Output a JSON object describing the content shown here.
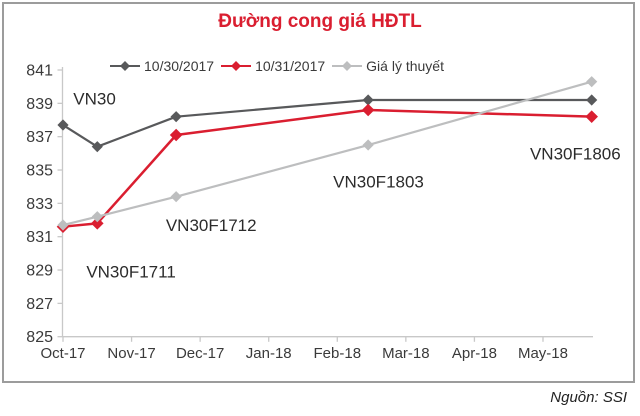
{
  "title": "Đường cong giá HĐTL",
  "source": "Nguồn: SSI",
  "colors": {
    "title_red": "#da1e30",
    "series_dark_gray": "#58595b",
    "series_red": "#da1e30",
    "series_light_gray": "#bdbebf",
    "axis_line": "#c8c8c8",
    "tick_text": "#3a3a3a",
    "annotation_text": "#2b2b2b",
    "frame_border": "#9c9c9c"
  },
  "chart_data": {
    "type": "line",
    "title": "Đường cong giá HĐTL",
    "xlabel": "",
    "ylabel": "",
    "grid": false,
    "legend_position": "top-center",
    "x_axis": {
      "tick_labels": [
        "Oct-17",
        "Nov-17",
        "Dec-17",
        "Jan-18",
        "Feb-18",
        "Mar-18",
        "Apr-18",
        "May-18"
      ],
      "tick_months": [
        0,
        1,
        2,
        3,
        4,
        5,
        6,
        7
      ],
      "range_months": [
        0,
        7.73
      ]
    },
    "y_axis": {
      "ticks": [
        825,
        827,
        829,
        831,
        833,
        835,
        837,
        839,
        841
      ],
      "lim": [
        825,
        841
      ]
    },
    "categories": [
      "VN30",
      "VN30F1711",
      "VN30F1712",
      "VN30F1803",
      "VN30F1806"
    ],
    "x_months": [
      0,
      0.5,
      1.65,
      4.45,
      7.71
    ],
    "series": [
      {
        "name": "10/30/2017",
        "color": "#58595b",
        "marker": "diamond",
        "marker_size": 5.6,
        "line_width": 2.2,
        "values": [
          837.7,
          836.4,
          838.2,
          839.2,
          839.2
        ]
      },
      {
        "name": "10/31/2017",
        "color": "#da1e30",
        "marker": "diamond",
        "marker_size": 6.3,
        "line_width": 2.5,
        "values": [
          831.6,
          831.8,
          837.1,
          838.6,
          838.2
        ]
      },
      {
        "name": "Giá lý thuyết",
        "color": "#bdbebf",
        "marker": "diamond",
        "marker_size": 5.6,
        "line_width": 2.2,
        "values": [
          831.7,
          832.2,
          833.4,
          836.5,
          840.3
        ]
      }
    ],
    "annotations": [
      {
        "text": "VN30",
        "x_month": 0.15,
        "y_value": 839.3
      },
      {
        "text": "VN30F1711",
        "x_month": 0.34,
        "y_value": 828.9
      },
      {
        "text": "VN30F1712",
        "x_month": 1.5,
        "y_value": 831.7
      },
      {
        "text": "VN30F1803",
        "x_month": 3.94,
        "y_value": 834.3
      },
      {
        "text": "VN30F1806",
        "x_month": 6.81,
        "y_value": 836.0
      }
    ]
  }
}
